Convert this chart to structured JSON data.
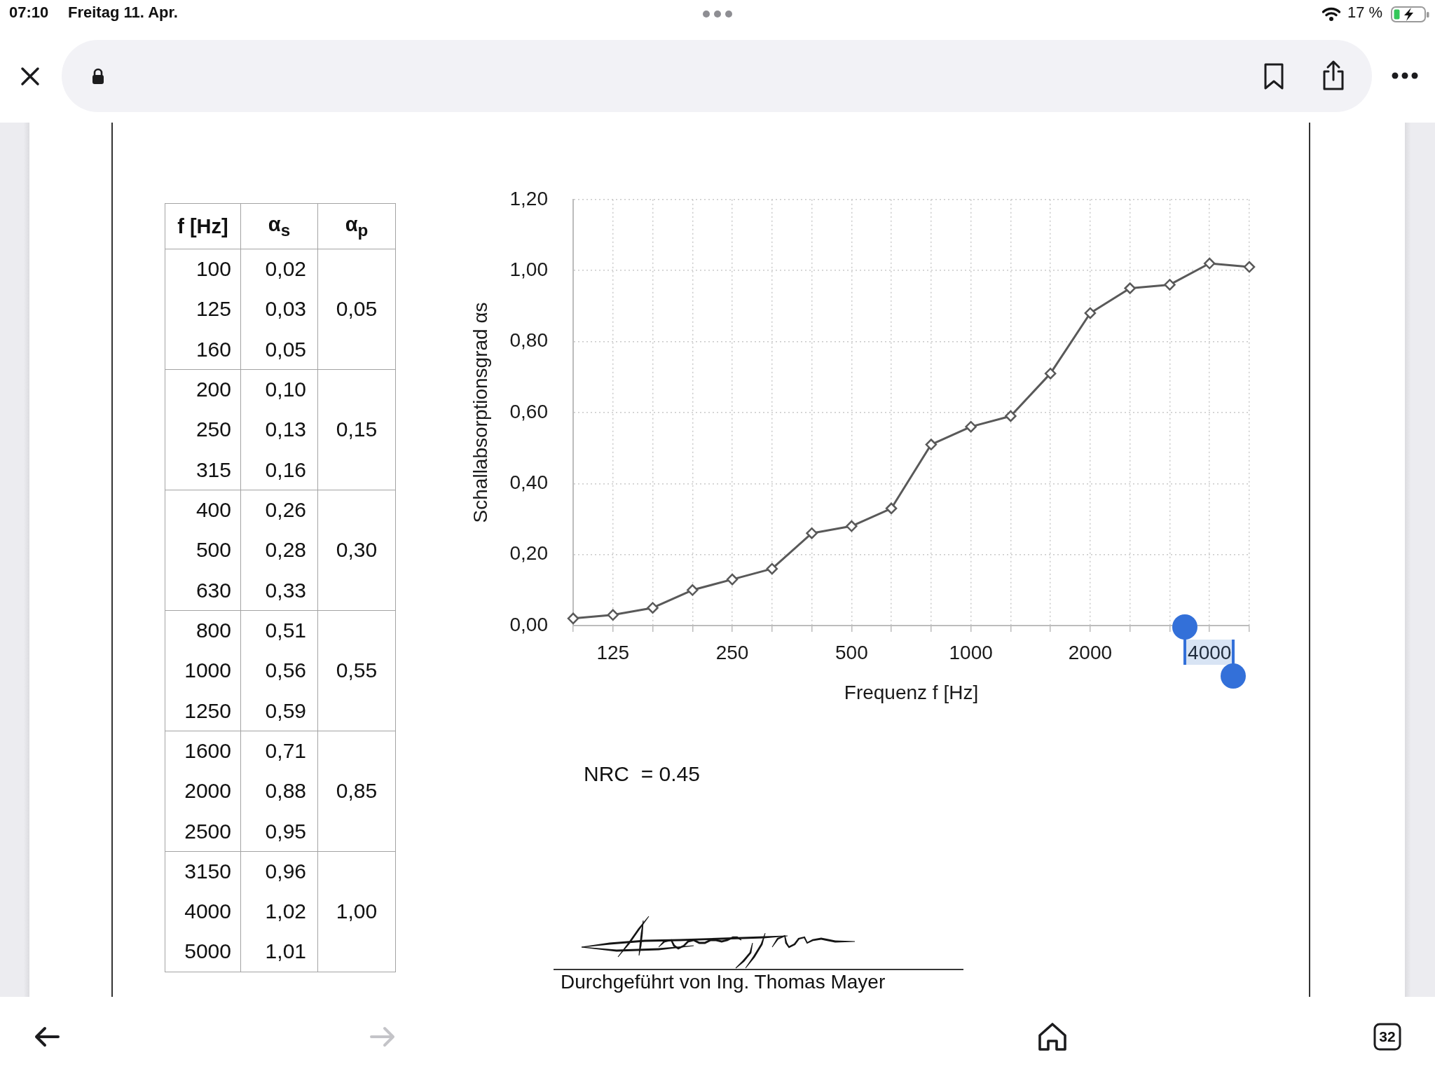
{
  "chart_data": [
    {
      "type": "other",
      "annotations": [
        "07:10",
        "Freitag 11. Apr.",
        "17 %",
        "32"
      ]
    },
    {
      "type": "other",
      "xlabel": "f [Hz]",
      "categories": [
        "100",
        "125",
        "160",
        "200",
        "250",
        "315",
        "400",
        "500",
        "630",
        "800",
        "1000",
        "1250",
        "1600",
        "2000",
        "2500",
        "3150",
        "4000",
        "5000"
      ],
      "series": [
        {
          "name": "α$_{s}$",
          "values": [
            0.02,
            0.03,
            0.05,
            0.1,
            0.13,
            0.16,
            0.26,
            0.28,
            0.33,
            0.51,
            0.56,
            0.59,
            0.71,
            0.88,
            0.95,
            0.96,
            1.02,
            1.01
          ],
          "value_labels": [
            "0,02",
            "0,03",
            "0,05",
            "0,10",
            "0,13",
            "0,16",
            "0,26",
            "0,28",
            "0,33",
            "0,51",
            "0,56",
            "0,59",
            "0,71",
            "0,88",
            "0,95",
            "0,96",
            "1,02",
            "1,01"
          ]
        },
        {
          "name": "α$_{p}$",
          "values": [
            null,
            0.05,
            null,
            null,
            0.15,
            null,
            null,
            0.3,
            null,
            null,
            0.55,
            null,
            null,
            0.85,
            null,
            null,
            1.0,
            null
          ],
          "value_labels": [
            null,
            "0,05",
            null,
            null,
            "0,15",
            null,
            null,
            "0,30",
            null,
            null,
            "0,55",
            null,
            null,
            "0,85",
            null,
            null,
            "1,00",
            null
          ]
        }
      ]
    },
    {
      "type": "line",
      "categories": [
        null,
        "125",
        null,
        null,
        "250",
        null,
        null,
        "500",
        null,
        null,
        "1000",
        null,
        null,
        "2000",
        null,
        null,
        "4000",
        null
      ],
      "series": [
        {
          "color": "#595959",
          "values": [
            0.02,
            0.03,
            0.05,
            0.1,
            0.13,
            0.16,
            0.26,
            0.28,
            0.33,
            0.51,
            0.56,
            0.59,
            0.71,
            0.88,
            0.95,
            0.96,
            1.02,
            1.01
          ]
        }
      ],
      "xlabel": "Frequenz f [Hz]",
      "ylabel": "Schallabsorptionsgrad αs",
      "ylim": [
        0,
        1.2
      ],
      "yticks": [
        {
          "value": 0,
          "label": "0,00"
        },
        {
          "value": 0.2,
          "label": "0,20"
        },
        {
          "value": 0.4,
          "label": "0,40"
        },
        {
          "value": 0.6,
          "label": "0,60"
        },
        {
          "value": 0.8,
          "label": "0,80"
        },
        {
          "value": 1.0,
          "label": "1,00"
        },
        {
          "value": 1.2,
          "label": "1,20"
        }
      ],
      "grid": true,
      "marker": "diamond",
      "line_style": "solid",
      "annotations": [
        "NRC  = 0.45",
        "Durchgeführt von Ing. Thomas Mayer"
      ]
    }
  ]
}
